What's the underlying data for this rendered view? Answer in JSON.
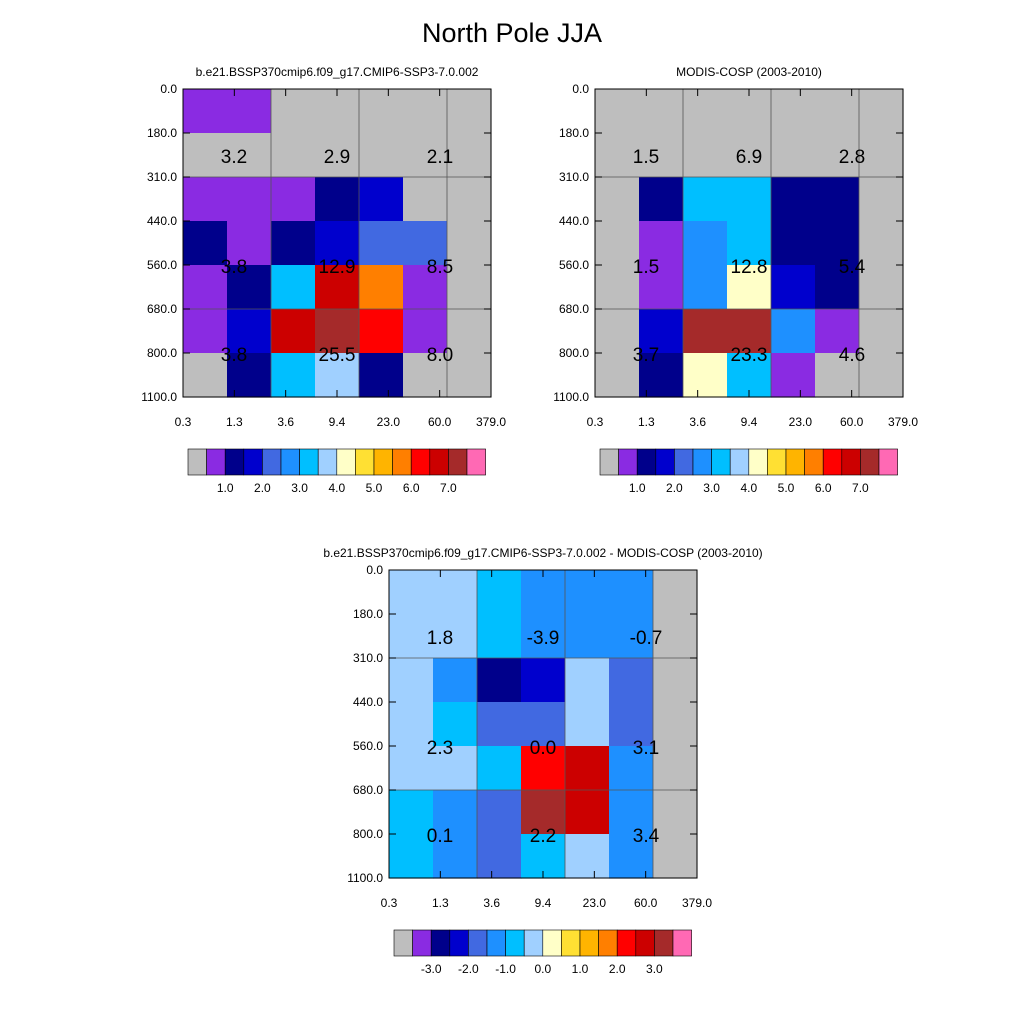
{
  "page_title": "North Pole JJA",
  "chart_data": [
    {
      "type": "heatmap",
      "name": "panel-model",
      "title": "b.e21.BSSP370cmip6.f09_g17.CMIP6-SSP3-7.0.002",
      "x_ticks": [
        "0.3",
        "1.3",
        "3.6",
        "9.4",
        "23.0",
        "60.0",
        "379.0"
      ],
      "y_ticks": [
        "0.0",
        "180.0",
        "310.0",
        "440.0",
        "560.0",
        "680.0",
        "800.0",
        "1100.0"
      ],
      "grid": "7 optical-depth bins x 7 cloud-top-pressure bins (hPa)",
      "cell_values": [
        [
          1,
          1,
          0,
          0,
          0,
          0,
          0
        ],
        [
          0,
          0,
          0,
          0,
          0,
          0,
          0
        ],
        [
          1,
          1,
          1,
          2,
          3,
          0,
          0
        ],
        [
          2,
          1,
          2,
          3,
          4,
          4,
          0
        ],
        [
          1,
          2,
          6,
          13,
          11,
          1,
          0
        ],
        [
          1,
          3,
          13,
          14,
          12,
          1,
          0
        ],
        [
          0,
          2,
          6,
          7,
          2,
          0,
          0
        ]
      ],
      "box_labels": [
        "3.2",
        "2.9",
        "2.1",
        "3.8",
        "12.9",
        "8.5",
        "3.8",
        "25.5",
        "8.0"
      ],
      "colorbar_labels": [
        "1.0",
        "2.0",
        "3.0",
        "4.0",
        "5.0",
        "6.0",
        "7.0"
      ],
      "value_range": [
        0,
        7.0
      ]
    },
    {
      "type": "heatmap",
      "name": "panel-obs",
      "title": "MODIS-COSP (2003-2010)",
      "x_ticks": [
        "0.3",
        "1.3",
        "3.6",
        "9.4",
        "23.0",
        "60.0",
        "379.0"
      ],
      "y_ticks": [
        "0.0",
        "180.0",
        "310.0",
        "440.0",
        "560.0",
        "680.0",
        "800.0",
        "1100.0"
      ],
      "grid": "7 optical-depth bins x 7 cloud-top-pressure bins (hPa)",
      "cell_values": [
        [
          0,
          0,
          0,
          0,
          0,
          0,
          0
        ],
        [
          0,
          0,
          0,
          0,
          0,
          0,
          0
        ],
        [
          0,
          2,
          6,
          6,
          2,
          2,
          0
        ],
        [
          0,
          1,
          5,
          6,
          2,
          2,
          0
        ],
        [
          0,
          1,
          5,
          8,
          3,
          2,
          0
        ],
        [
          0,
          3,
          14,
          14,
          5,
          1,
          0
        ],
        [
          0,
          2,
          8,
          6,
          1,
          0,
          0
        ]
      ],
      "box_labels": [
        "1.5",
        "6.9",
        "2.8",
        "1.5",
        "12.8",
        "5.4",
        "3.7",
        "23.3",
        "4.6"
      ],
      "colorbar_labels": [
        "1.0",
        "2.0",
        "3.0",
        "4.0",
        "5.0",
        "6.0",
        "7.0"
      ],
      "value_range": [
        0,
        7.0
      ]
    },
    {
      "type": "heatmap",
      "name": "panel-diff",
      "title": "b.e21.BSSP370cmip6.f09_g17.CMIP6-SSP3-7.0.002 - MODIS-COSP (2003-2010)",
      "x_ticks": [
        "0.3",
        "1.3",
        "3.6",
        "9.4",
        "23.0",
        "60.0",
        "379.0"
      ],
      "y_ticks": [
        "0.0",
        "180.0",
        "310.0",
        "440.0",
        "560.0",
        "680.0",
        "800.0",
        "1100.0"
      ],
      "grid": "7 optical-depth bins x 7 cloud-top-pressure bins (hPa)",
      "cell_values": [
        [
          7,
          7,
          6,
          5,
          5,
          5,
          0
        ],
        [
          7,
          7,
          6,
          5,
          5,
          5,
          0
        ],
        [
          7,
          5,
          2,
          3,
          7,
          4,
          0
        ],
        [
          7,
          6,
          4,
          4,
          7,
          4,
          0
        ],
        [
          7,
          7,
          6,
          12,
          13,
          5,
          0
        ],
        [
          6,
          5,
          4,
          14,
          13,
          5,
          0
        ],
        [
          6,
          5,
          4,
          6,
          7,
          5,
          0
        ]
      ],
      "box_labels": [
        "1.8",
        "-3.9",
        "-0.7",
        "2.3",
        "0.0",
        "3.1",
        "0.1",
        "2.2",
        "3.4"
      ],
      "colorbar_labels": [
        "-3.0",
        "-2.0",
        "-1.0",
        "0.0",
        "1.0",
        "2.0",
        "3.0"
      ],
      "value_range": [
        -3.0,
        3.0
      ]
    }
  ],
  "palettes": {
    "abs": [
      "#bebebe",
      "#8a2be2",
      "#00008b",
      "#0000cd",
      "#4169e1",
      "#1e90ff",
      "#00bfff",
      "#a0d0ff",
      "#ffffc8",
      "#ffe033",
      "#ffb400",
      "#ff7f00",
      "#ff0000",
      "#cc0000",
      "#a52a2a",
      "#ff69b4"
    ],
    "diff": [
      "#bebebe",
      "#8a2be2",
      "#00008b",
      "#0000cd",
      "#4169e1",
      "#1e90ff",
      "#00bfff",
      "#a0d0ff",
      "#ffffc8",
      "#ffe033",
      "#ffb400",
      "#ff7f00",
      "#ff0000",
      "#cc0000",
      "#a52a2a",
      "#ff69b4"
    ]
  }
}
